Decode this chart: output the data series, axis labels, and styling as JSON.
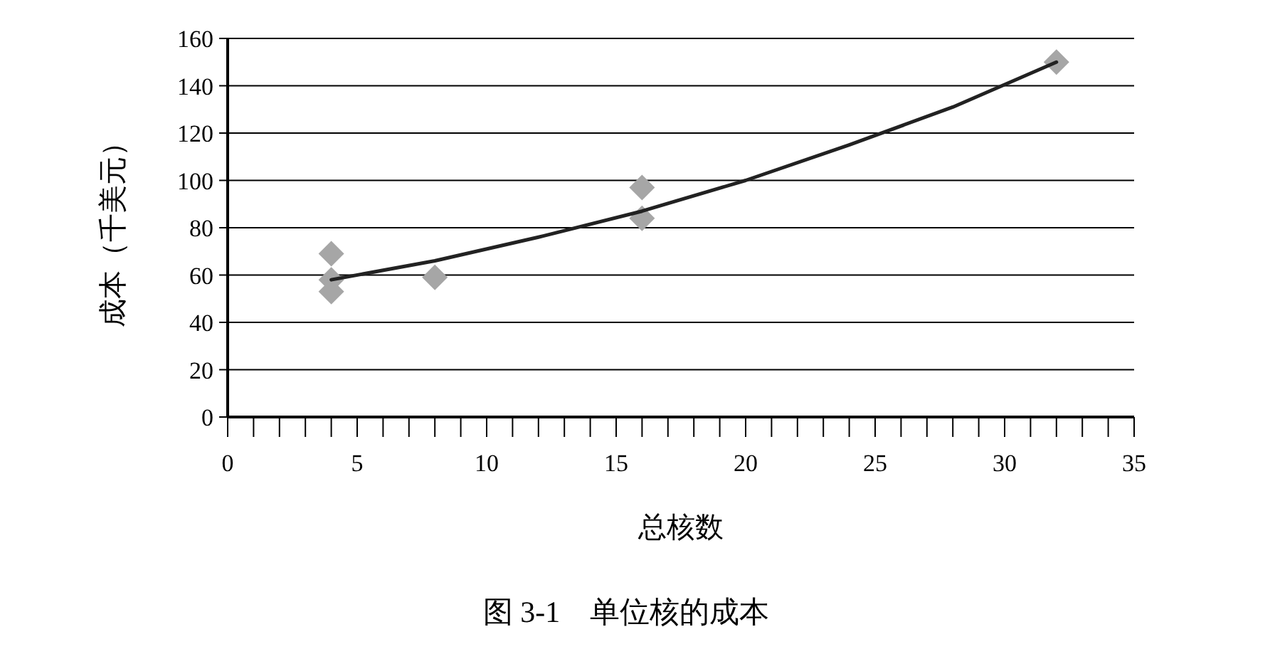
{
  "chart_data": {
    "type": "scatter",
    "title": "图 3-1　单位核的成本",
    "xlabel": "总核数",
    "ylabel": "成本（千美元）",
    "xlim": [
      0,
      35
    ],
    "xticks": [
      0,
      {
        "value": 1,
        "label": null
      },
      {
        "value": 2,
        "label": null
      },
      {
        "value": 3,
        "label": null
      },
      {
        "value": 4,
        "label": null
      },
      5,
      {
        "value": 6,
        "label": null
      },
      {
        "value": 7,
        "label": null
      },
      {
        "value": 8,
        "label": null
      },
      {
        "value": 9,
        "label": null
      },
      10,
      {
        "value": 11,
        "label": null
      },
      {
        "value": 12,
        "label": null
      },
      {
        "value": 13,
        "label": null
      },
      {
        "value": 14,
        "label": null
      },
      15,
      {
        "value": 16,
        "label": null
      },
      {
        "value": 17,
        "label": null
      },
      {
        "value": 18,
        "label": null
      },
      {
        "value": 19,
        "label": null
      },
      20,
      {
        "value": 21,
        "label": null
      },
      {
        "value": 22,
        "label": null
      },
      {
        "value": 23,
        "label": null
      },
      {
        "value": 24,
        "label": null
      },
      25,
      {
        "value": 26,
        "label": null
      },
      {
        "value": 27,
        "label": null
      },
      {
        "value": 28,
        "label": null
      },
      {
        "value": 29,
        "label": null
      },
      30,
      {
        "value": 31,
        "label": null
      },
      {
        "value": 32,
        "label": null
      },
      {
        "value": 33,
        "label": null
      },
      {
        "value": 34,
        "label": null
      },
      35
    ],
    "ylim": [
      0,
      160
    ],
    "yticks": [
      0,
      20,
      40,
      60,
      80,
      100,
      120,
      140,
      160
    ],
    "grid": "y",
    "series": [
      {
        "color": "#a6a6a6",
        "marker": "diamond",
        "x": [
          4,
          4,
          4,
          8,
          16,
          16,
          32
        ],
        "values": [
          69,
          58,
          53,
          59,
          97,
          84,
          150
        ]
      },
      {
        "type": "line",
        "color": "#222222",
        "marker": "none",
        "line_style": "solid",
        "x": [
          4,
          8,
          12,
          16,
          20,
          24,
          28,
          32
        ],
        "values": [
          58,
          66,
          76,
          87,
          100,
          115,
          131,
          150
        ]
      }
    ]
  }
}
